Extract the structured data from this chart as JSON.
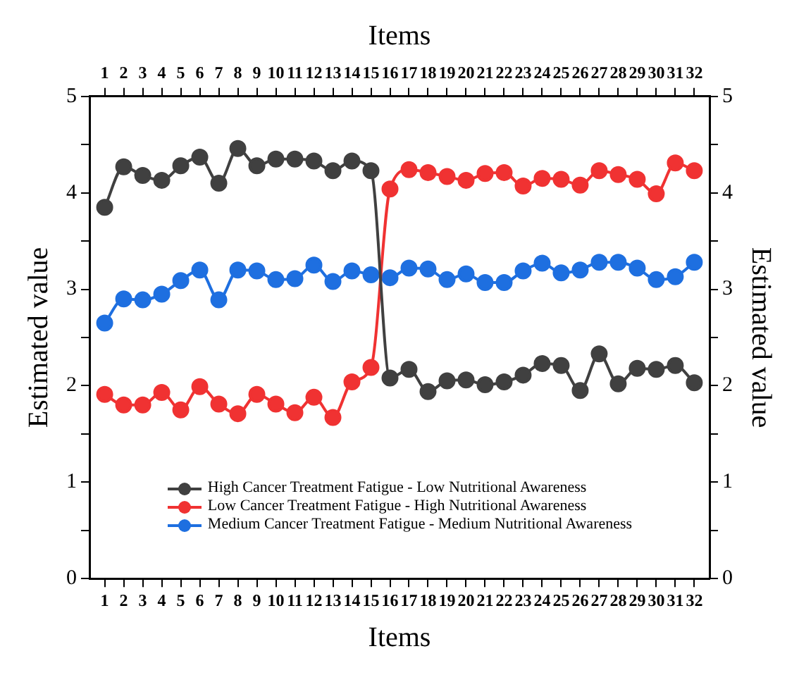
{
  "chart_data": {
    "type": "line",
    "xlabel": "Items",
    "x2label": "Items",
    "ylabel": "Estimated value",
    "y2label": "Estimated value",
    "x": [
      1,
      2,
      3,
      4,
      5,
      6,
      7,
      8,
      9,
      10,
      11,
      12,
      13,
      14,
      15,
      16,
      17,
      18,
      19,
      20,
      21,
      22,
      23,
      24,
      25,
      26,
      27,
      28,
      29,
      30,
      31,
      32
    ],
    "xlim": [
      0.2,
      32.8
    ],
    "xticks": [
      1,
      2,
      3,
      4,
      5,
      6,
      7,
      8,
      9,
      10,
      11,
      12,
      13,
      14,
      15,
      16,
      17,
      18,
      19,
      20,
      21,
      22,
      23,
      24,
      25,
      26,
      27,
      28,
      29,
      30,
      31,
      32
    ],
    "x2lim": [
      0.2,
      32.8
    ],
    "x2ticks": [
      1,
      2,
      3,
      4,
      5,
      6,
      7,
      8,
      9,
      10,
      11,
      12,
      13,
      14,
      15,
      16,
      17,
      18,
      19,
      20,
      21,
      22,
      23,
      24,
      25,
      26,
      27,
      28,
      29,
      30,
      31,
      32
    ],
    "ylim": [
      0,
      5
    ],
    "yticks": [
      0,
      {
        "value": 0.5,
        "label": null
      },
      1,
      {
        "value": 1.5,
        "label": null
      },
      2,
      {
        "value": 2.5,
        "label": null
      },
      3,
      {
        "value": 3.5,
        "label": null
      },
      4,
      {
        "value": 4.5,
        "label": null
      },
      5
    ],
    "y2lim": [
      0,
      5
    ],
    "y2ticks": [
      0,
      {
        "value": 0.5,
        "label": null
      },
      1,
      {
        "value": 1.5,
        "label": null
      },
      2,
      {
        "value": 2.5,
        "label": null
      },
      3,
      {
        "value": 3.5,
        "label": null
      },
      4,
      {
        "value": 4.5,
        "label": null
      },
      5
    ],
    "series": [
      {
        "name": "High Cancer Treatment Fatigue - Low Nutritional Awareness",
        "color": "#404040",
        "values": [
          3.85,
          4.27,
          4.18,
          4.13,
          4.28,
          4.37,
          4.1,
          4.46,
          4.28,
          4.35,
          4.35,
          4.33,
          4.23,
          4.33,
          4.23,
          2.08,
          2.17,
          1.94,
          2.05,
          2.06,
          2.01,
          2.04,
          2.11,
          2.23,
          2.21,
          1.95,
          2.33,
          2.02,
          2.18,
          2.17,
          2.21,
          2.03
        ]
      },
      {
        "name": "Low Cancer Treatment Fatigue - High Nutritional Awareness",
        "color": "#f03232",
        "values": [
          1.91,
          1.8,
          1.8,
          1.93,
          1.75,
          1.99,
          1.81,
          1.71,
          1.91,
          1.81,
          1.72,
          1.88,
          1.67,
          2.04,
          2.19,
          4.04,
          4.24,
          4.21,
          4.17,
          4.13,
          4.2,
          4.21,
          4.07,
          4.15,
          4.14,
          4.08,
          4.23,
          4.19,
          4.14,
          3.99,
          4.31,
          4.23
        ]
      },
      {
        "name": "Medium Cancer Treatment Fatigue - Medium Nutritional Awareness",
        "color": "#1e6fe0",
        "values": [
          2.65,
          2.9,
          2.89,
          2.95,
          3.09,
          3.2,
          2.89,
          3.2,
          3.19,
          3.1,
          3.11,
          3.25,
          3.08,
          3.19,
          3.15,
          3.12,
          3.22,
          3.21,
          3.1,
          3.16,
          3.07,
          3.07,
          3.19,
          3.27,
          3.17,
          3.2,
          3.28,
          3.28,
          3.22,
          3.1,
          3.13,
          3.28
        ]
      }
    ],
    "legend": "bottom",
    "marker": "circle",
    "line_style": "solid",
    "grid": false
  }
}
